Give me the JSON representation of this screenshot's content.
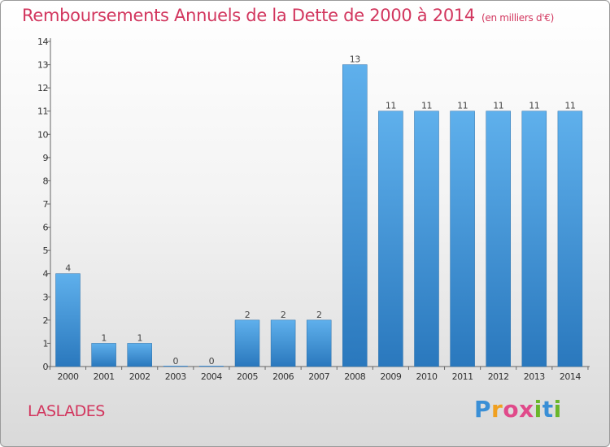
{
  "page": {
    "title": "Remboursements Annuels de la Dette de 2000 à 2014",
    "unit": "(en milliers d'€)",
    "commune": "LASLADES",
    "logo": {
      "letters": [
        "P",
        "r",
        "o",
        "x",
        "i",
        "t",
        "i"
      ],
      "colors": [
        "#3a8fd6",
        "#f0a020",
        "#e04a8a",
        "#e04a8a",
        "#6ab62a",
        "#3a8fd6",
        "#6ab62a"
      ]
    }
  },
  "chart_data": {
    "type": "bar",
    "categories": [
      "2000",
      "2001",
      "2002",
      "2003",
      "2004",
      "2005",
      "2006",
      "2007",
      "2008",
      "2009",
      "2010",
      "2011",
      "2012",
      "2013",
      "2014"
    ],
    "values": [
      4,
      1,
      1,
      0,
      0,
      2,
      2,
      2,
      13,
      11,
      11,
      11,
      11,
      11,
      11
    ],
    "data_labels": [
      "4",
      "1",
      "1",
      "0",
      "0",
      "2",
      "2",
      "2",
      "13",
      "11",
      "11",
      "11",
      "11",
      "11",
      "11"
    ],
    "title": "Remboursements Annuels de la Dette de 2000 à 2014",
    "xlabel": "",
    "ylabel": "",
    "ylim": [
      0,
      14
    ],
    "yticks": [
      0,
      1,
      2,
      3,
      4,
      5,
      6,
      7,
      8,
      9,
      10,
      11,
      12,
      13,
      14
    ],
    "grid": false,
    "bar_color": "#3d8fd8"
  }
}
